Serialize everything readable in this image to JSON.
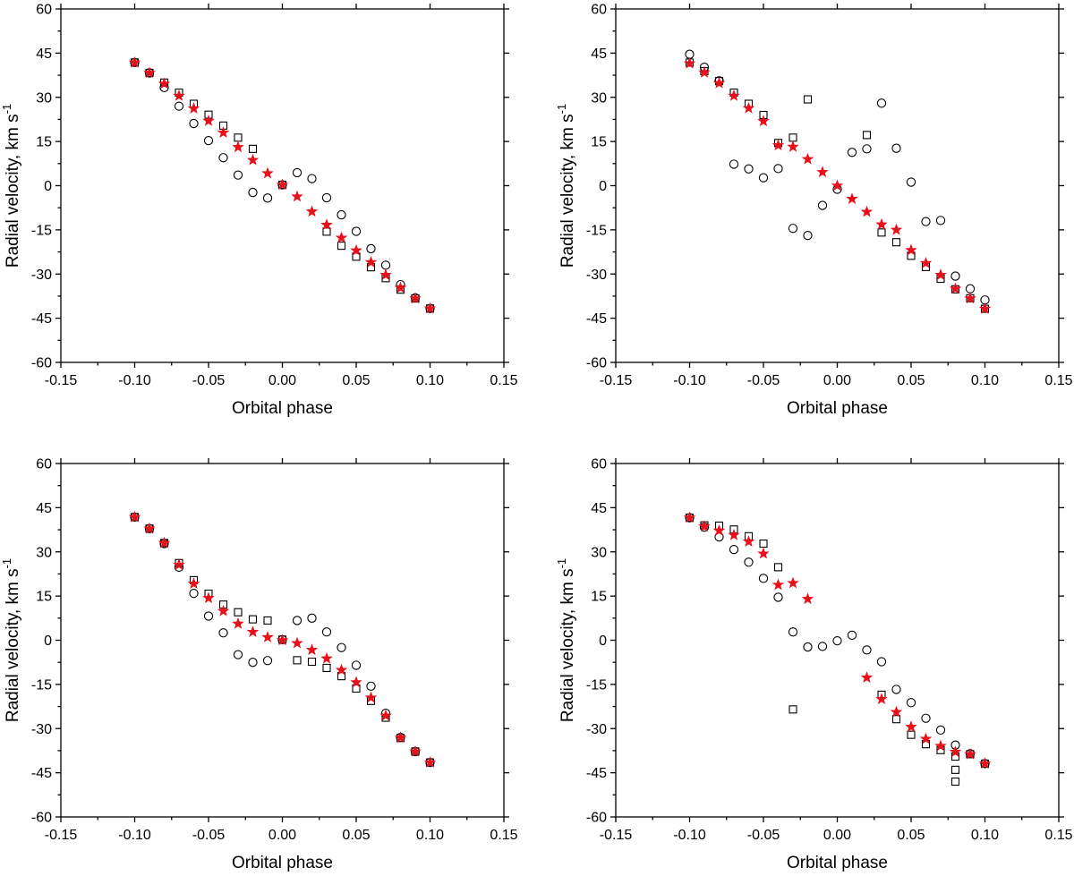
{
  "chart_data": [
    {
      "type": "scatter",
      "xlabel": "Orbital phase",
      "ylabel_main": "Radial velocity, km s",
      "ylabel_sup": "-1",
      "xlim": [
        -0.15,
        0.15
      ],
      "ylim": [
        -60,
        60
      ],
      "xticks": [
        "-0.15",
        "-0.10",
        "-0.05",
        "0.00",
        "0.05",
        "0.10",
        "0.15"
      ],
      "yticks": [
        "-60",
        "-45",
        "-30",
        "-15",
        "0",
        "15",
        "30",
        "45",
        "60"
      ],
      "series": [
        {
          "marker": "square",
          "color": "#000000",
          "x": [
            -0.1,
            -0.09,
            -0.08,
            -0.07,
            -0.06,
            -0.05,
            -0.04,
            -0.03,
            -0.02,
            0.0,
            0.03,
            0.04,
            0.05,
            0.06,
            0.07,
            0.08,
            0.09,
            0.1
          ],
          "y": [
            41.8,
            38.3,
            35.0,
            31.6,
            27.8,
            24.1,
            20.4,
            16.3,
            12.5,
            0.3,
            -15.6,
            -20.4,
            -24.1,
            -27.7,
            -31.4,
            -35.3,
            -38.3,
            -41.7
          ]
        },
        {
          "marker": "circle",
          "color": "#000000",
          "x": [
            -0.1,
            -0.09,
            -0.08,
            -0.07,
            -0.06,
            -0.05,
            -0.04,
            -0.03,
            -0.02,
            -0.01,
            0.0,
            0.01,
            0.02,
            0.03,
            0.04,
            0.05,
            0.06,
            0.07,
            0.08,
            0.09,
            0.1
          ],
          "y": [
            41.8,
            38.3,
            33.3,
            27.0,
            21.1,
            15.3,
            9.5,
            3.6,
            -2.3,
            -4.2,
            0.3,
            4.4,
            2.4,
            -4.1,
            -9.9,
            -15.5,
            -21.4,
            -27.0,
            -33.6,
            -38.1,
            -41.7
          ]
        },
        {
          "marker": "star",
          "color": "#e8101a",
          "x": [
            -0.1,
            -0.09,
            -0.08,
            -0.07,
            -0.06,
            -0.05,
            -0.04,
            -0.03,
            -0.02,
            -0.01,
            0.0,
            0.01,
            0.02,
            0.03,
            0.04,
            0.05,
            0.06,
            0.07,
            0.08,
            0.09,
            0.1
          ],
          "y": [
            41.8,
            38.3,
            34.6,
            30.5,
            26.2,
            22.0,
            18.0,
            13.1,
            8.7,
            4.2,
            0.3,
            -3.7,
            -8.8,
            -13.3,
            -17.7,
            -22.0,
            -26.0,
            -30.3,
            -34.7,
            -38.3,
            -41.7
          ]
        }
      ]
    },
    {
      "type": "scatter",
      "xlabel": "Orbital phase",
      "ylabel_main": "Radial velocity, km s",
      "ylabel_sup": "-1",
      "xlim": [
        -0.15,
        0.15
      ],
      "ylim": [
        -60,
        60
      ],
      "xticks": [
        "-0.15",
        "-0.10",
        "-0.05",
        "0.00",
        "0.05",
        "0.10",
        "0.15"
      ],
      "yticks": [
        "-60",
        "-45",
        "-30",
        "-15",
        "0",
        "15",
        "30",
        "45",
        "60"
      ],
      "series": [
        {
          "marker": "square",
          "color": "#000000",
          "x": [
            -0.1,
            -0.09,
            -0.08,
            -0.07,
            -0.06,
            -0.05,
            -0.04,
            -0.03,
            -0.02,
            0.02,
            0.03,
            0.04,
            0.05,
            0.06,
            0.07,
            0.08,
            0.09,
            0.1
          ],
          "y": [
            41.8,
            38.9,
            35.5,
            31.6,
            27.8,
            24.0,
            14.5,
            16.3,
            29.3,
            17.2,
            -15.9,
            -19.2,
            -23.8,
            -27.6,
            -31.6,
            -35.2,
            -38.2,
            -41.8
          ]
        },
        {
          "marker": "circle",
          "color": "#000000",
          "x": [
            -0.1,
            -0.09,
            -0.08,
            -0.07,
            -0.06,
            -0.05,
            -0.04,
            -0.03,
            -0.02,
            -0.01,
            0.0,
            0.01,
            0.02,
            0.03,
            0.04,
            0.05,
            0.06,
            0.07,
            0.08,
            0.09,
            0.1
          ],
          "y": [
            44.6,
            40.2,
            35.6,
            7.3,
            5.7,
            2.7,
            5.8,
            -14.5,
            -16.9,
            -6.7,
            -1.2,
            11.3,
            12.5,
            28.0,
            12.7,
            1.2,
            -12.2,
            -11.8,
            -30.7,
            -35.0,
            -38.8
          ]
        },
        {
          "marker": "star",
          "color": "#e8101a",
          "x": [
            -0.1,
            -0.09,
            -0.08,
            -0.07,
            -0.06,
            -0.05,
            -0.04,
            -0.03,
            -0.02,
            -0.01,
            0.0,
            0.01,
            0.02,
            0.03,
            0.04,
            0.05,
            0.06,
            0.07,
            0.08,
            0.09,
            0.1
          ],
          "y": [
            41.5,
            38.4,
            34.8,
            30.5,
            26.3,
            21.9,
            13.7,
            13.2,
            9.0,
            4.6,
            0.0,
            -4.5,
            -8.9,
            -13.2,
            -15.0,
            -21.9,
            -26.3,
            -30.3,
            -35.0,
            -38.3,
            -41.8
          ]
        }
      ]
    },
    {
      "type": "scatter",
      "xlabel": "Orbital phase",
      "ylabel_main": "Radial velocity, km s",
      "ylabel_sup": "-1",
      "xlim": [
        -0.15,
        0.15
      ],
      "ylim": [
        -60,
        60
      ],
      "xticks": [
        "-0.15",
        "-0.10",
        "-0.05",
        "0.00",
        "0.05",
        "0.10",
        "0.15"
      ],
      "yticks": [
        "-60",
        "-45",
        "-30",
        "-15",
        "0",
        "15",
        "30",
        "45",
        "60"
      ],
      "series": [
        {
          "marker": "square",
          "color": "#000000",
          "x": [
            -0.1,
            -0.09,
            -0.08,
            -0.07,
            -0.06,
            -0.05,
            -0.04,
            -0.03,
            -0.02,
            -0.01,
            0.0,
            0.01,
            0.02,
            0.03,
            0.04,
            0.05,
            0.06,
            0.07,
            0.08,
            0.09,
            0.1
          ],
          "y": [
            41.8,
            37.9,
            33.0,
            26.2,
            20.4,
            15.8,
            12.1,
            9.5,
            7.1,
            6.7,
            0.2,
            -6.8,
            -7.3,
            -9.4,
            -12.2,
            -16.4,
            -20.6,
            -26.3,
            -33.2,
            -37.8,
            -41.5
          ]
        },
        {
          "marker": "circle",
          "color": "#000000",
          "x": [
            -0.1,
            -0.09,
            -0.08,
            -0.07,
            -0.06,
            -0.05,
            -0.04,
            -0.03,
            -0.02,
            -0.01,
            0.0,
            0.01,
            0.02,
            0.03,
            0.04,
            0.05,
            0.06,
            0.07,
            0.08,
            0.09,
            0.1
          ],
          "y": [
            41.8,
            37.9,
            32.8,
            24.8,
            15.9,
            8.2,
            2.5,
            -4.9,
            -7.5,
            -6.9,
            0.2,
            6.7,
            7.5,
            2.8,
            -2.5,
            -8.5,
            -15.6,
            -24.8,
            -33.0,
            -37.8,
            -41.5
          ]
        },
        {
          "marker": "star",
          "color": "#e8101a",
          "x": [
            -0.1,
            -0.09,
            -0.08,
            -0.07,
            -0.06,
            -0.05,
            -0.04,
            -0.03,
            -0.02,
            -0.01,
            0.0,
            0.01,
            0.02,
            0.03,
            0.04,
            0.05,
            0.06,
            0.07,
            0.08,
            0.09,
            0.1
          ],
          "y": [
            41.8,
            37.9,
            33.0,
            25.6,
            19.2,
            14.3,
            9.9,
            5.6,
            2.8,
            1.0,
            0.0,
            -1.0,
            -3.3,
            -6.2,
            -10.1,
            -14.3,
            -19.5,
            -25.6,
            -33.1,
            -37.8,
            -41.5
          ]
        }
      ]
    },
    {
      "type": "scatter",
      "xlabel": "Orbital phase",
      "ylabel_main": "Radial velocity, km s",
      "ylabel_sup": "-1",
      "xlim": [
        -0.15,
        0.15
      ],
      "ylim": [
        -60,
        60
      ],
      "xticks": [
        "-0.15",
        "-0.10",
        "-0.05",
        "0.00",
        "0.05",
        "0.10",
        "0.15"
      ],
      "yticks": [
        "-60",
        "-45",
        "-30",
        "-15",
        "0",
        "15",
        "30",
        "45",
        "60"
      ],
      "series": [
        {
          "marker": "square",
          "color": "#000000",
          "x": [
            -0.1,
            -0.09,
            -0.08,
            -0.07,
            -0.06,
            -0.05,
            -0.04,
            -0.03,
            0.03,
            0.04,
            0.05,
            0.06,
            0.07,
            0.08,
            0.08,
            0.08,
            0.09,
            0.1
          ],
          "y": [
            41.6,
            39.0,
            38.9,
            37.6,
            35.3,
            32.8,
            24.8,
            -23.5,
            -18.5,
            -26.8,
            -32.1,
            -35.3,
            -37.3,
            -39.5,
            -44.0,
            -48.0,
            -38.7,
            -41.9
          ]
        },
        {
          "marker": "circle",
          "color": "#000000",
          "x": [
            -0.1,
            -0.09,
            -0.08,
            -0.07,
            -0.06,
            -0.05,
            -0.04,
            -0.03,
            -0.02,
            -0.01,
            0.0,
            0.01,
            0.02,
            0.03,
            0.04,
            0.05,
            0.06,
            0.07,
            0.08,
            0.09,
            0.1
          ],
          "y": [
            41.6,
            38.4,
            35.1,
            30.8,
            26.5,
            21.0,
            14.6,
            2.8,
            -2.3,
            -2.1,
            -0.2,
            1.7,
            -3.3,
            -7.3,
            -16.7,
            -21.2,
            -26.5,
            -30.5,
            -35.6,
            -38.5,
            -41.9
          ]
        },
        {
          "marker": "star",
          "color": "#e8101a",
          "x": [
            -0.1,
            -0.09,
            -0.08,
            -0.07,
            -0.06,
            -0.05,
            -0.04,
            -0.03,
            -0.02,
            0.02,
            0.03,
            0.04,
            0.05,
            0.06,
            0.07,
            0.08,
            0.09,
            0.1
          ],
          "y": [
            41.6,
            38.6,
            37.2,
            35.7,
            33.5,
            29.4,
            18.8,
            19.4,
            14.0,
            -12.7,
            -20.0,
            -24.4,
            -29.4,
            -33.5,
            -35.9,
            -37.9,
            -38.7,
            -41.9
          ]
        }
      ]
    }
  ]
}
